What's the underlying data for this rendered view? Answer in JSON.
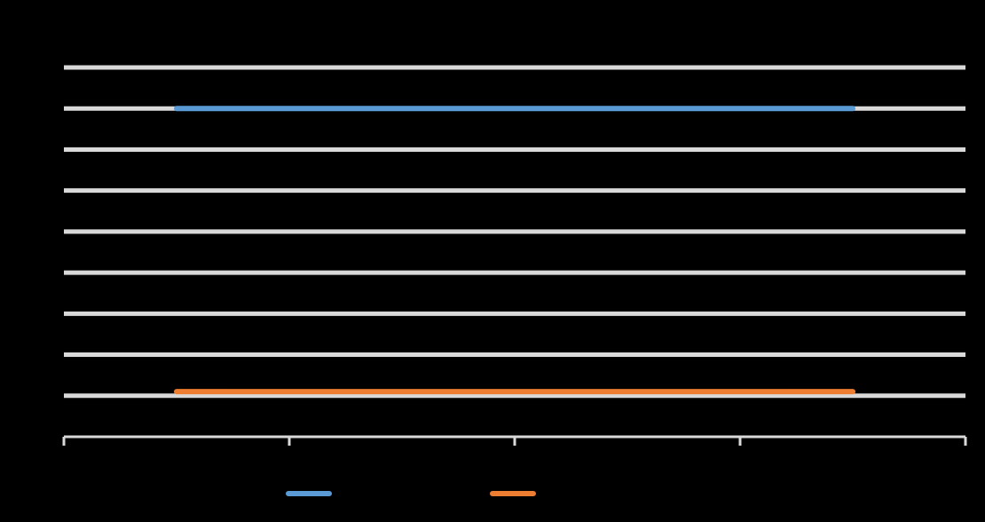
{
  "chart_data": {
    "type": "line",
    "title": "",
    "categories": [
      "",
      "",
      "",
      ""
    ],
    "y_ticks": [
      "",
      "",
      "",
      "",
      "",
      "",
      "",
      "",
      "",
      ""
    ],
    "ylim": [
      0,
      9
    ],
    "grid": true,
    "legend_position": "bottom",
    "series": [
      {
        "name": "",
        "values": [
          8,
          8,
          8,
          8
        ],
        "color": "#5B9BD5"
      },
      {
        "name": "",
        "values": [
          1.1,
          1.1,
          1.1,
          1.1
        ],
        "color": "#ED7D31"
      }
    ]
  },
  "colors": {
    "background": "#000000",
    "gridline": "#D9D9D9",
    "axis": "#D9D9D9",
    "text": "#595959"
  }
}
